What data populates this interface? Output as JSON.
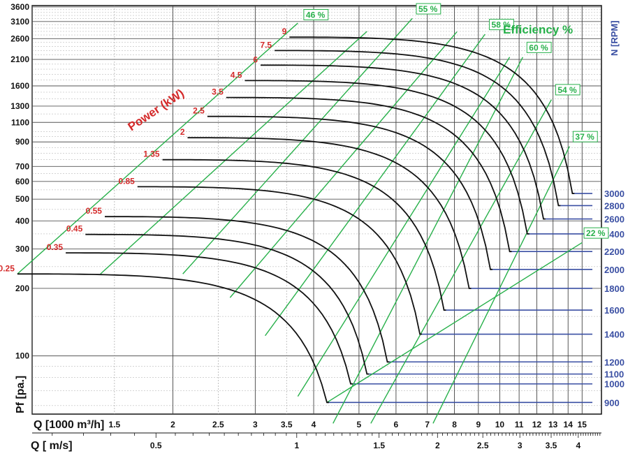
{
  "chart_data": {
    "type": "line",
    "title": "",
    "xlabel": "Q [1000 m³/h]",
    "xlabel2": "Q [ m/s]",
    "ylabel": "Pf [pa.]",
    "x_scale": "log",
    "y_scale": "log",
    "xlim": [
      1.0,
      16.5
    ],
    "ylim": [
      55,
      3650
    ],
    "x_ticks": [
      "1.5",
      "2",
      "2.5",
      "3",
      "3.5",
      "4",
      "5",
      "6",
      "7",
      "8",
      "9",
      "10",
      "11",
      "12",
      "13",
      "14",
      "15"
    ],
    "x_tick_values": [
      1.5,
      2,
      2.5,
      3,
      3.5,
      4,
      5,
      6,
      7,
      8,
      9,
      10,
      11,
      12,
      13,
      14,
      15
    ],
    "x2_ticks": [
      "0.5",
      "1",
      "1.5",
      "2",
      "2.5",
      "3",
      "3.5",
      "4"
    ],
    "x2_tick_values": [
      0.5,
      1,
      1.5,
      2,
      2.5,
      3,
      3.5,
      4
    ],
    "y_ticks": [
      "100",
      "200",
      "300",
      "400",
      "500",
      "600",
      "700",
      "900",
      "1100",
      "1300",
      "1600",
      "2100",
      "2600",
      "3100",
      "3600"
    ],
    "y_tick_values": [
      100,
      200,
      300,
      400,
      500,
      600,
      700,
      900,
      1100,
      1300,
      1600,
      2100,
      2600,
      3100,
      3600
    ],
    "grid": true,
    "rpm_title": "N [RPM]",
    "power_title": "Power (kW)",
    "efficiency_title": "Efficiency %",
    "series": [
      {
        "name": "900",
        "pmax": 232,
        "qstart": 0.93,
        "qmax": 4.27,
        "pend": 62
      },
      {
        "name": "1000",
        "pmax": 288,
        "qstart": 1.18,
        "qmax": 4.8,
        "pend": 75
      },
      {
        "name": "1100",
        "pmax": 348,
        "qstart": 1.3,
        "qmax": 5.2,
        "pend": 83
      },
      {
        "name": "1200",
        "pmax": 418,
        "qstart": 1.43,
        "qmax": 5.75,
        "pend": 94
      },
      {
        "name": "1400",
        "pmax": 568,
        "qstart": 1.68,
        "qmax": 6.75,
        "pend": 125
      },
      {
        "name": "1600",
        "pmax": 750,
        "qstart": 1.9,
        "qmax": 7.6,
        "pend": 160
      },
      {
        "name": "1800",
        "pmax": 940,
        "qstart": 2.15,
        "qmax": 8.6,
        "pend": 200
      },
      {
        "name": "2000",
        "pmax": 1170,
        "qstart": 2.37,
        "qmax": 9.55,
        "pend": 243
      },
      {
        "name": "2200",
        "pmax": 1420,
        "qstart": 2.6,
        "qmax": 10.5,
        "pend": 292
      },
      {
        "name": "2400",
        "pmax": 1690,
        "qstart": 2.85,
        "qmax": 11.45,
        "pend": 350
      },
      {
        "name": "2600",
        "pmax": 1980,
        "qstart": 3.08,
        "qmax": 12.4,
        "pend": 408
      },
      {
        "name": "2800",
        "pmax": 2300,
        "qstart": 3.3,
        "qmax": 13.35,
        "pend": 468
      },
      {
        "name": "3000",
        "pmax": 2640,
        "qstart": 3.55,
        "qmax": 14.3,
        "pend": 530
      }
    ],
    "power_labels": [
      {
        "text": "0.25",
        "q": 0.93,
        "p": 232
      },
      {
        "text": "0.35",
        "q": 1.18,
        "p": 288
      },
      {
        "text": "0.45",
        "q": 1.3,
        "p": 348
      },
      {
        "text": "0.55",
        "q": 1.43,
        "p": 418
      },
      {
        "text": "0.85",
        "q": 1.68,
        "p": 568
      },
      {
        "text": "1.35",
        "q": 1.9,
        "p": 750
      },
      {
        "text": "2",
        "q": 2.15,
        "p": 940
      },
      {
        "text": "2.5",
        "q": 2.37,
        "p": 1170
      },
      {
        "text": "3.5",
        "q": 2.6,
        "p": 1420
      },
      {
        "text": "4.5",
        "q": 2.85,
        "p": 1690
      },
      {
        "text": "6",
        "q": 3.08,
        "p": 1980
      },
      {
        "text": "7.5",
        "q": 3.3,
        "p": 2300
      },
      {
        "text": "9",
        "q": 3.55,
        "p": 2640
      }
    ],
    "efficiency_lines": [
      {
        "label": "46 %",
        "q1": 0.93,
        "p1": 232,
        "q2": 3.7,
        "p2": 3050
      },
      {
        "label": "",
        "q1": 1.4,
        "p1": 232,
        "q2": 5.2,
        "p2": 2800
      },
      {
        "label": "55 %",
        "q1": 2.1,
        "p1": 232,
        "q2": 6.5,
        "p2": 3200
      },
      {
        "label": "",
        "q1": 2.65,
        "p1": 182,
        "q2": 8.1,
        "p2": 2790
      },
      {
        "label": "58 %",
        "q1": 3.15,
        "p1": 123,
        "q2": 9.3,
        "p2": 2720
      },
      {
        "label": "",
        "q1": 3.7,
        "p1": 66,
        "q2": 10.5,
        "p2": 2150
      },
      {
        "label": "60 %",
        "q1": 4.4,
        "p1": 50,
        "q2": 11.2,
        "p2": 2150
      },
      {
        "label": "54 %",
        "q1": 5.3,
        "p1": 50,
        "q2": 12.9,
        "p2": 1390
      },
      {
        "label": "37 %",
        "q1": 7.2,
        "p1": 50,
        "q2": 14.1,
        "p2": 860
      },
      {
        "label": "22 %",
        "q1": 4.27,
        "p1": 62,
        "q2": 15.0,
        "p2": 320
      }
    ],
    "efficiency_label_positions": [
      {
        "text": "46 %",
        "q": 3.85,
        "p": 3220
      },
      {
        "text": "55 %",
        "q": 6.7,
        "p": 3420
      },
      {
        "text": "58 %",
        "q": 9.6,
        "p": 2910
      },
      {
        "text": "60 %",
        "q": 11.55,
        "p": 2300
      },
      {
        "text": "54 %",
        "q": 13.3,
        "p": 1490
      },
      {
        "text": "37 %",
        "q": 14.5,
        "p": 920
      },
      {
        "text": "22 %",
        "q": 15.3,
        "p": 342
      }
    ]
  }
}
